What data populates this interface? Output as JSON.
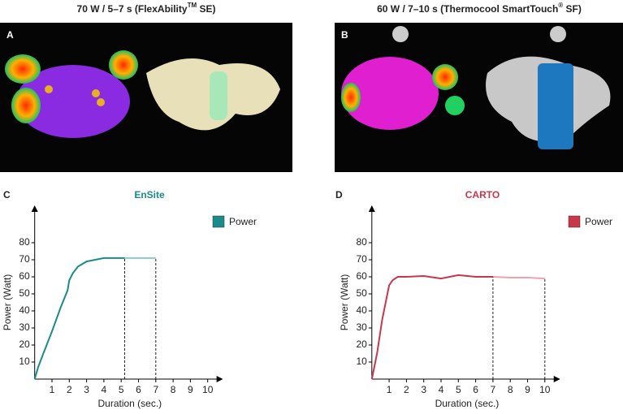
{
  "panel_titles": [
    {
      "parts": [
        "70 W / 5–7 s (FlexAbility",
        "TM",
        " SE)"
      ]
    },
    {
      "parts": [
        "60 W / 7–10 s (Thermocool SmartTouch",
        "®",
        " SF)"
      ]
    }
  ],
  "panel_letters": [
    "A",
    "B",
    "C",
    "D"
  ],
  "chart_data": [
    {
      "type": "line",
      "title": "EnSite",
      "title_color": "#1a8a8a",
      "ylabel": "Power (Watt)",
      "xlabel": "Duration (sec.)",
      "x": [
        0,
        0.2,
        0.5,
        1,
        1.5,
        1.9,
        2,
        2.2,
        2.5,
        3,
        3.5,
        4,
        4.5,
        5.2,
        6,
        7
      ],
      "series": [
        {
          "name": "Power",
          "color": "#1a8a8a",
          "faded_color": "#8cc8c8",
          "values": [
            0,
            7,
            15,
            28,
            42,
            52,
            58,
            62,
            66,
            69,
            70,
            71,
            71,
            71,
            71,
            71
          ]
        }
      ],
      "markers": [
        5.2,
        7
      ],
      "xlim": [
        0,
        10.7
      ],
      "ylim": [
        0,
        100
      ],
      "xticks": [
        1,
        2,
        3,
        4,
        5,
        6,
        7,
        8,
        9,
        10
      ],
      "yticks": [
        10,
        20,
        30,
        40,
        50,
        60,
        70,
        80
      ]
    },
    {
      "type": "line",
      "title": "CARTO",
      "title_color": "#c8374a",
      "ylabel": "Power (Watt)",
      "xlabel": "Duration (sec.)",
      "x": [
        0,
        0.3,
        0.6,
        1,
        1.2,
        1.5,
        2,
        3,
        4,
        5,
        6,
        7,
        8,
        9,
        10
      ],
      "series": [
        {
          "name": "Power",
          "color": "#c8374a",
          "faded_color": "#eba3ad",
          "values": [
            0,
            15,
            35,
            55,
            58,
            60,
            60,
            60.5,
            59,
            61,
            60,
            60,
            59.5,
            59.5,
            59
          ]
        }
      ],
      "markers": [
        7,
        10
      ],
      "xlim": [
        0,
        10.7
      ],
      "ylim": [
        0,
        100
      ],
      "xticks": [
        1,
        2,
        3,
        4,
        5,
        6,
        7,
        8,
        9,
        10
      ],
      "yticks": [
        10,
        20,
        30,
        40,
        50,
        60,
        70,
        80
      ]
    }
  ]
}
